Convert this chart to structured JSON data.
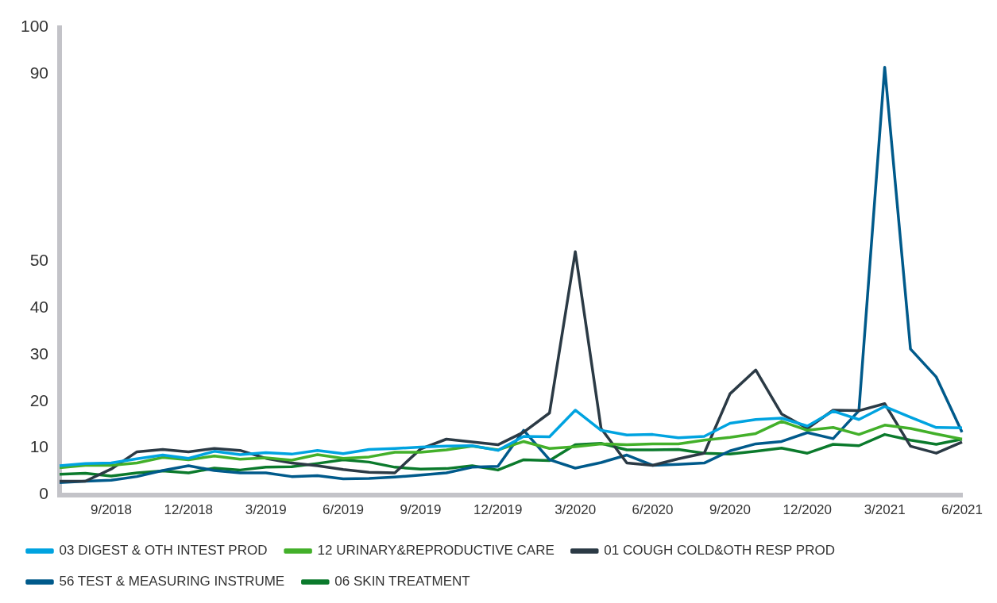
{
  "chart_data": {
    "type": "line",
    "categories": [
      null,
      null,
      "9/2018",
      null,
      null,
      "12/2018",
      null,
      null,
      "3/2019",
      null,
      null,
      "6/2019",
      null,
      null,
      "9/2019",
      null,
      null,
      "12/2019",
      null,
      null,
      "3/2020",
      null,
      null,
      "6/2020",
      null,
      null,
      "9/2020",
      null,
      null,
      "12/2020",
      null,
      null,
      "3/2021",
      null,
      null,
      "6/2021"
    ],
    "series": [
      {
        "name": "03 DIGEST & OTH INTEST PROD",
        "color": "#00a3e0",
        "values": [
          6.2,
          6.7,
          6.8,
          7.7,
          8.5,
          7.8,
          9.3,
          8.6,
          9.0,
          8.7,
          9.5,
          8.8,
          9.7,
          9.9,
          10.2,
          10.4,
          10.5,
          9.5,
          12.5,
          12.4,
          18.1,
          13.8,
          12.8,
          12.9,
          12.2,
          12.5,
          15.3,
          16.1,
          16.4,
          14.7,
          17.9,
          16.1,
          18.9,
          16.6,
          14.4,
          14.3
        ]
      },
      {
        "name": "12 URINARY&REPRODUCTIVE CARE",
        "color": "#43b02a",
        "values": [
          5.8,
          6.3,
          6.3,
          6.8,
          8.0,
          7.5,
          8.3,
          7.6,
          7.9,
          7.4,
          8.6,
          7.8,
          8.1,
          9.1,
          9.1,
          9.6,
          10.4,
          9.6,
          11.4,
          9.9,
          10.3,
          10.9,
          10.7,
          10.9,
          10.9,
          11.7,
          12.3,
          13.1,
          15.7,
          13.8,
          14.4,
          12.9,
          14.9,
          14.2,
          13.0,
          11.9
        ]
      },
      {
        "name": "01 COUGH COLD&OTH RESP PROD",
        "color": "#2b3a45",
        "values": [
          2.9,
          2.9,
          5.5,
          9.2,
          9.7,
          9.2,
          9.9,
          9.5,
          7.8,
          6.8,
          6.2,
          5.4,
          4.8,
          4.7,
          9.8,
          11.9,
          11.3,
          10.7,
          13.4,
          17.5,
          52.0,
          14.2,
          6.8,
          6.3,
          7.7,
          8.9,
          21.6,
          26.7,
          17.3,
          14.2,
          18.1,
          18.0,
          19.5,
          10.4,
          8.9,
          11.3
        ]
      },
      {
        "name": "56 TEST & MEASURING INSTRUME",
        "color": "#005a8b",
        "values": [
          2.6,
          2.9,
          3.1,
          3.9,
          5.2,
          6.2,
          5.2,
          4.7,
          4.7,
          3.9,
          4.1,
          3.4,
          3.5,
          3.8,
          4.2,
          4.7,
          5.9,
          6.1,
          13.8,
          7.5,
          5.7,
          6.9,
          8.5,
          6.3,
          6.5,
          6.8,
          9.4,
          10.9,
          11.4,
          13.3,
          12.0,
          18.0,
          91.5,
          31.2,
          25.2,
          13.4
        ]
      },
      {
        "name": "06 SKIN TREATMENT",
        "color": "#0b7a2c",
        "values": [
          4.4,
          4.6,
          4.0,
          4.7,
          5.1,
          4.7,
          5.7,
          5.3,
          5.9,
          6.0,
          6.7,
          7.5,
          7.0,
          5.9,
          5.5,
          5.6,
          6.2,
          5.3,
          7.5,
          7.3,
          10.7,
          11.0,
          9.6,
          9.6,
          9.7,
          8.9,
          8.7,
          9.3,
          10.0,
          8.9,
          10.8,
          10.5,
          12.9,
          11.7,
          10.8,
          11.9
        ]
      }
    ],
    "ylim": [
      0,
      100
    ],
    "yticks": [
      0,
      10,
      20,
      30,
      40,
      50,
      90,
      100
    ],
    "grid": false,
    "legend": "bottom left",
    "marker": "none",
    "line_style": "solid"
  }
}
